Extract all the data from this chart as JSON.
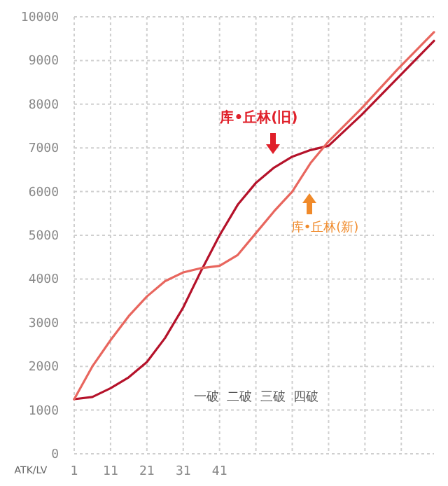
{
  "chart_data": {
    "type": "line",
    "xlabel": "ATK/LV",
    "xlim": [
      1,
      100
    ],
    "xticks": [
      1,
      11,
      21,
      31,
      41,
      {
        "value": 51,
        "label": null
      },
      {
        "value": 61,
        "label": null
      },
      {
        "value": 71,
        "label": null
      },
      {
        "value": 81,
        "label": null
      },
      {
        "value": 91,
        "label": null
      }
    ],
    "ylim": [
      0,
      10000
    ],
    "yticks": [
      0,
      1000,
      2000,
      3000,
      4000,
      5000,
      6000,
      7000,
      8000,
      9000,
      10000
    ],
    "grid": true,
    "marker": "none",
    "line_style": "solid",
    "series": [
      {
        "color": "#b5122a",
        "x": [
          1,
          6,
          11,
          16,
          21,
          26,
          31,
          36,
          41,
          46,
          51,
          56,
          61,
          66,
          71,
          80,
          90,
          100
        ],
        "values": [
          1250,
          1300,
          1500,
          1750,
          2100,
          2650,
          3350,
          4200,
          5000,
          5700,
          6200,
          6550,
          6800,
          6950,
          7050,
          7750,
          8600,
          9450
        ]
      },
      {
        "color": "#e8665e",
        "x": [
          1,
          6,
          11,
          16,
          21,
          26,
          31,
          36,
          41,
          46,
          51,
          56,
          61,
          66,
          71,
          80,
          90,
          100
        ],
        "values": [
          1250,
          2000,
          2600,
          3150,
          3600,
          3950,
          4150,
          4250,
          4300,
          4550,
          5050,
          5550,
          6000,
          6650,
          7150,
          7900,
          8800,
          9650
        ]
      }
    ],
    "annotations": [
      "库•丘林(旧)",
      "库•丘林(新)",
      "一破  二破  三破  四破"
    ]
  }
}
